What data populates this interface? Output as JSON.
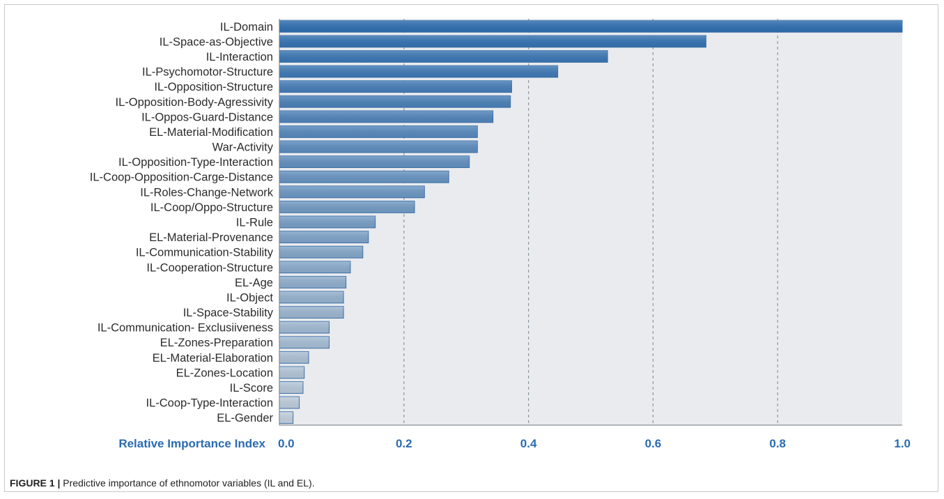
{
  "caption": {
    "label": "FIGURE 1 |",
    "text": "Predictive importance of ethnomotor variables (IL and EL)."
  },
  "colors": {
    "bar_top": "#2f6fb2",
    "bar_bottom": "#c5d2de",
    "bar_stroke": "#3a6fa8",
    "plot_background": "#e9ebee",
    "grid": "#8c96a0",
    "tick_text": "#2a6bb0"
  },
  "chart_data": {
    "type": "bar",
    "orientation": "horizontal",
    "title": "",
    "xlabel": "Relative Importance Index",
    "ylabel": "",
    "xlim": [
      0,
      1.0
    ],
    "xticks": [
      "0.0",
      "0.2",
      "0.4",
      "0.6",
      "0.8",
      "1.0"
    ],
    "grid": "vertical dashed at 0.2, 0.4, 0.6, 0.8",
    "categories": [
      "IL-Domain",
      "IL-Space-as-Objective",
      "IL-Interaction",
      "IL-Psychomotor-Structure",
      "IL-Opposition-Structure",
      "IL-Opposition-Body-Agressivity",
      "IL-Oppos-Guard-Distance",
      "EL-Material-Modification",
      "War-Activity",
      "IL-Opposition-Type-Interaction",
      "IL-Coop-Opposition-Carge-Distance",
      "IL-Roles-Change-Network",
      "IL-Coop/Oppo-Structure",
      "IL-Rule",
      "EL-Material-Provenance",
      "IL-Communication-Stability",
      "IL-Cooperation-Structure",
      "EL-Age",
      "IL-Object",
      "IL-Space-Stability",
      "IL-Communication- Exclusiiveness",
      "EL-Zones-Preparation",
      "EL-Material-Elaboration",
      "EL-Zones-Location",
      "IL-Score",
      "IL-Coop-Type-Interaction",
      "EL-Gender"
    ],
    "values": [
      1.0,
      0.685,
      0.527,
      0.447,
      0.373,
      0.371,
      0.343,
      0.318,
      0.318,
      0.305,
      0.272,
      0.233,
      0.217,
      0.154,
      0.143,
      0.134,
      0.114,
      0.107,
      0.103,
      0.103,
      0.08,
      0.08,
      0.047,
      0.04,
      0.038,
      0.032,
      0.022
    ]
  }
}
